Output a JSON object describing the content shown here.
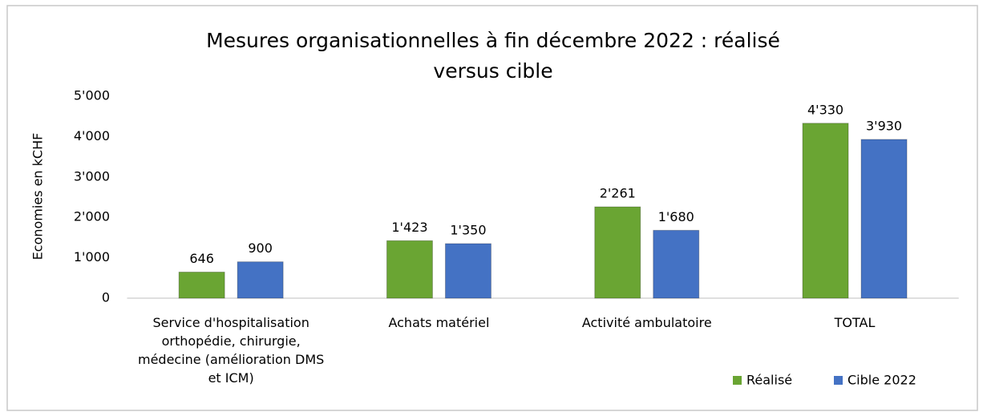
{
  "chart_data": {
    "type": "bar",
    "title": "Mesures organisationnelles à fin décembre 2022 : réalisé versus cible",
    "y_label": "Economies en kCHF",
    "categories": [
      "Service d'hospitalisation orthopédie, chirurgie, médecine (amélioration DMS et ICM)",
      "Achats matériel",
      "Activité ambulatoire",
      "TOTAL"
    ],
    "series": [
      {
        "name": "Réalisé",
        "color": "#6aa533",
        "values": [
          646,
          1423,
          2261,
          4330
        ],
        "value_labels": [
          "646",
          "1'423",
          "2'261",
          "4'330"
        ]
      },
      {
        "name": "Cible 2022",
        "color": "#4472c4",
        "values": [
          900,
          1350,
          1680,
          3930
        ],
        "value_labels": [
          "900",
          "1'350",
          "1'680",
          "3'930"
        ]
      }
    ],
    "ylim": [
      0,
      5000
    ],
    "yticks": [
      0,
      {
        "value": 1000,
        "label": "1'000"
      },
      {
        "value": 2000,
        "label": "2'000"
      },
      {
        "value": 3000,
        "label": "3'000"
      },
      {
        "value": 4000,
        "label": "4'000"
      },
      {
        "value": 5000,
        "label": "5'000"
      }
    ],
    "legend": "bottom-right",
    "grid": false
  }
}
